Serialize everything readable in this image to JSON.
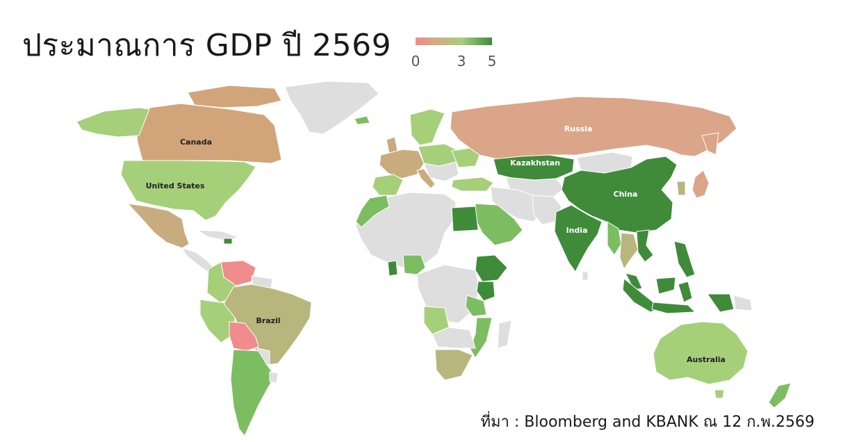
{
  "title": "ประมาณการ GDP ปี 2569",
  "source": "ที่มา : Bloomberg and KBANK ณ 12 ก.พ.2569",
  "legend": {
    "ticks": [
      {
        "label": "0",
        "value": 0
      },
      {
        "label": "3",
        "value": 3
      },
      {
        "label": "5",
        "value": 5
      }
    ],
    "min": 0,
    "max": 5,
    "colors": [
      "#f08c8c",
      "#a8cf7c",
      "#3f8b3a"
    ]
  },
  "colors": {
    "no_data": "#dedede",
    "russia": "#dba58a",
    "canada": "#d2a47a",
    "light_green": "#a6cf7a",
    "mid_green": "#7dbd62",
    "dark_green": "#3f8b3a",
    "olive": "#b8b67c",
    "salmon": "#f08c8c",
    "tan": "#c9ac7e"
  },
  "labels": {
    "russia": "Russia",
    "canada": "Canada",
    "united_states": "United States",
    "kazakhstan": "Kazakhstan",
    "china": "China",
    "india": "India",
    "brazil": "Brazil",
    "australia": "Australia"
  }
}
